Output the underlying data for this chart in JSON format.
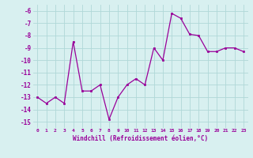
{
  "x": [
    0,
    1,
    2,
    3,
    4,
    5,
    6,
    7,
    8,
    9,
    10,
    11,
    12,
    13,
    14,
    15,
    16,
    17,
    18,
    19,
    20,
    21,
    22,
    23
  ],
  "y": [
    -13.0,
    -13.5,
    -13.0,
    -13.5,
    -8.5,
    -12.5,
    -12.5,
    -12.0,
    -14.8,
    -13.0,
    -12.0,
    -11.5,
    -12.0,
    -9.0,
    -10.0,
    -6.2,
    -6.6,
    -7.9,
    -8.0,
    -9.3,
    -9.3,
    -9.0,
    -9.0,
    -9.3
  ],
  "line_color": "#990099",
  "marker": "s",
  "marker_size": 2,
  "bg_color": "#d8f0f0",
  "grid_color": "#b0d8d8",
  "xlabel": "Windchill (Refroidissement éolien,°C)",
  "xlabel_color": "#990099",
  "tick_color": "#990099",
  "label_color": "#990099",
  "ylim": [
    -15.5,
    -5.5
  ],
  "xlim": [
    -0.5,
    23.5
  ],
  "yticks": [
    -15,
    -14,
    -13,
    -12,
    -11,
    -10,
    -9,
    -8,
    -7,
    -6
  ],
  "xticks": [
    0,
    1,
    2,
    3,
    4,
    5,
    6,
    7,
    8,
    9,
    10,
    11,
    12,
    13,
    14,
    15,
    16,
    17,
    18,
    19,
    20,
    21,
    22,
    23
  ],
  "xtick_labels": [
    "0",
    "1",
    "2",
    "3",
    "4",
    "5",
    "6",
    "7",
    "8",
    "9",
    "10",
    "11",
    "12",
    "13",
    "14",
    "15",
    "16",
    "17",
    "18",
    "19",
    "20",
    "21",
    "22",
    "23"
  ],
  "ytick_labels": [
    "-15",
    "-14",
    "-13",
    "-12",
    "-11",
    "-10",
    "-9",
    "-8",
    "-7",
    "-6"
  ]
}
